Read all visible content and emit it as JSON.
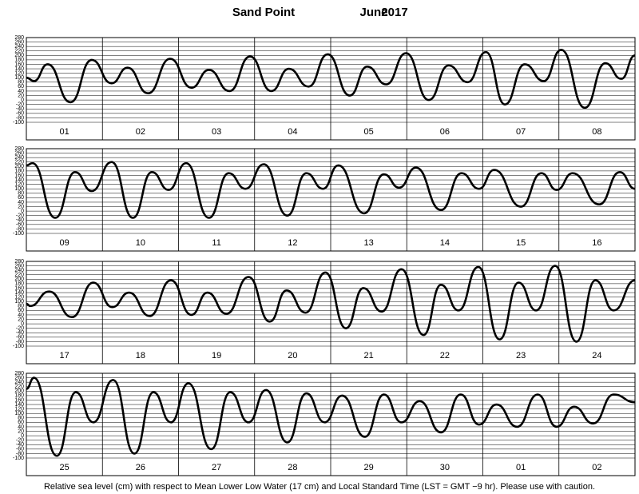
{
  "title": "Sand Point",
  "month": "June",
  "year": "2017",
  "caption": "Relative sea level (cm) with respect to Mean Lower Low Water (17 cm) and Local Standard Time (LST = GMT −9 hr). Please use with caution.",
  "chart_data": [
    {
      "type": "line",
      "categories": [
        "01",
        "02",
        "03",
        "04",
        "05",
        "06",
        "07",
        "08"
      ],
      "color": "#000000",
      "grid": true,
      "xlim": [
        0,
        8
      ],
      "xticks": [
        0,
        1,
        2,
        3,
        4,
        5,
        6,
        7,
        8
      ],
      "ylim": [
        -100,
        280
      ],
      "yticks": [
        -100,
        -80,
        -60,
        -40,
        -20,
        0,
        20,
        40,
        60,
        80,
        100,
        120,
        140,
        160,
        180,
        200,
        220,
        240,
        260,
        280
      ],
      "x": [
        0,
        0.1,
        0.28,
        0.58,
        0.86,
        1.12,
        1.33,
        1.6,
        1.89,
        2.17,
        2.4,
        2.67,
        2.94,
        3.22,
        3.45,
        3.71,
        3.96,
        4.25,
        4.48,
        4.73,
        4.99,
        5.29,
        5.55,
        5.8,
        6.04,
        6.29,
        6.55,
        6.8,
        7.03,
        7.34,
        7.61,
        7.82,
        8
      ],
      "values": [
        100,
        85,
        160,
        -10,
        180,
        75,
        145,
        30,
        185,
        55,
        135,
        40,
        195,
        40,
        140,
        60,
        205,
        20,
        150,
        70,
        210,
        0,
        155,
        80,
        215,
        -20,
        160,
        85,
        225,
        -35,
        165,
        95,
        200
      ]
    },
    {
      "type": "line",
      "categories": [
        "09",
        "10",
        "11",
        "12",
        "13",
        "14",
        "15",
        "16"
      ],
      "color": "#000000",
      "grid": true,
      "xlim": [
        0,
        8
      ],
      "xticks": [
        0,
        1,
        2,
        3,
        4,
        5,
        6,
        7,
        8
      ],
      "ylim": [
        -100,
        280
      ],
      "yticks": [
        -100,
        -80,
        -60,
        -40,
        -20,
        0,
        20,
        40,
        60,
        80,
        100,
        120,
        140,
        160,
        180,
        200,
        220,
        240,
        260,
        280
      ],
      "x": [
        0,
        0.08,
        0.38,
        0.64,
        0.86,
        1.12,
        1.4,
        1.65,
        1.87,
        2.1,
        2.4,
        2.66,
        2.88,
        3.12,
        3.43,
        3.68,
        3.9,
        4.1,
        4.44,
        4.7,
        4.9,
        5.12,
        5.45,
        5.72,
        5.95,
        6.15,
        6.5,
        6.77,
        6.97,
        7.18,
        7.53,
        7.8,
        8
      ],
      "values": [
        205,
        215,
        -30,
        175,
        90,
        220,
        -30,
        175,
        95,
        215,
        -30,
        170,
        100,
        210,
        -20,
        170,
        100,
        205,
        -10,
        165,
        105,
        195,
        5,
        170,
        100,
        185,
        20,
        170,
        95,
        170,
        30,
        175,
        100
      ]
    },
    {
      "type": "line",
      "categories": [
        "17",
        "18",
        "19",
        "20",
        "21",
        "22",
        "23",
        "24"
      ],
      "color": "#000000",
      "grid": true,
      "xlim": [
        0,
        8
      ],
      "xticks": [
        0,
        1,
        2,
        3,
        4,
        5,
        6,
        7,
        8
      ],
      "ylim": [
        -100,
        280
      ],
      "yticks": [
        -100,
        -80,
        -60,
        -40,
        -20,
        0,
        20,
        40,
        60,
        80,
        100,
        120,
        140,
        160,
        180,
        200,
        220,
        240,
        260,
        280
      ],
      "x": [
        0,
        0.05,
        0.3,
        0.6,
        0.88,
        1.13,
        1.35,
        1.62,
        1.9,
        2.17,
        2.38,
        2.63,
        2.92,
        3.2,
        3.42,
        3.67,
        3.93,
        4.2,
        4.43,
        4.67,
        4.93,
        5.22,
        5.45,
        5.68,
        5.94,
        6.22,
        6.47,
        6.7,
        6.95,
        7.23,
        7.48,
        7.72,
        8
      ],
      "values": [
        90,
        80,
        145,
        30,
        185,
        75,
        140,
        35,
        195,
        40,
        140,
        45,
        210,
        10,
        150,
        50,
        230,
        -20,
        160,
        55,
        245,
        -50,
        175,
        60,
        255,
        -70,
        185,
        60,
        260,
        -80,
        195,
        60,
        195
      ]
    },
    {
      "type": "line",
      "categories": [
        "25",
        "26",
        "27",
        "28",
        "29",
        "30",
        "01",
        "02"
      ],
      "color": "#000000",
      "grid": true,
      "xlim": [
        0,
        8
      ],
      "xticks": [
        0,
        1,
        2,
        3,
        4,
        5,
        6,
        7,
        8
      ],
      "ylim": [
        -100,
        280
      ],
      "yticks": [
        -100,
        -80,
        -60,
        -40,
        -20,
        0,
        20,
        40,
        60,
        80,
        100,
        120,
        140,
        160,
        180,
        200,
        220,
        240,
        260,
        280
      ],
      "x": [
        0,
        0.1,
        0.4,
        0.65,
        0.88,
        1.14,
        1.42,
        1.67,
        1.9,
        2.13,
        2.43,
        2.68,
        2.92,
        3.15,
        3.43,
        3.68,
        3.92,
        4.15,
        4.45,
        4.7,
        4.93,
        5.17,
        5.45,
        5.71,
        5.95,
        6.18,
        6.45,
        6.72,
        6.97,
        7.2,
        7.45,
        7.72,
        8
      ],
      "values": [
        210,
        260,
        -90,
        195,
        60,
        250,
        -80,
        195,
        60,
        235,
        -60,
        195,
        60,
        205,
        -30,
        190,
        60,
        180,
        -5,
        185,
        60,
        155,
        15,
        185,
        50,
        140,
        40,
        185,
        40,
        130,
        55,
        185,
        150
      ]
    }
  ]
}
